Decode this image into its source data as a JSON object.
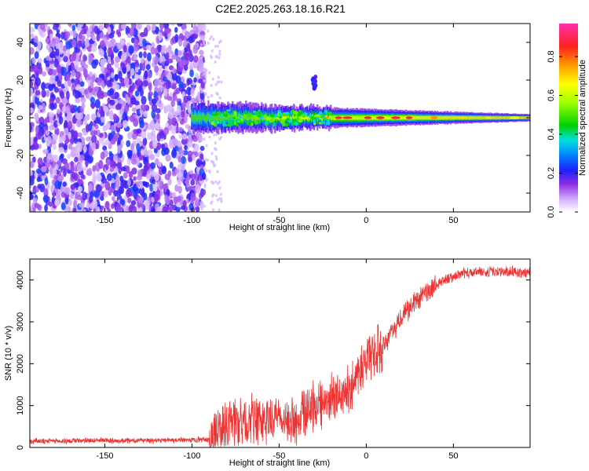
{
  "title": "C2E2.2025.263.18.16.R21",
  "chart_data": [
    {
      "type": "heatmap",
      "title": "C2E2.2025.263.18.16.R21",
      "xlabel": "Height of straight line (km)",
      "ylabel": "Frequency (Hz)",
      "xlim": [
        -193,
        94
      ],
      "ylim": [
        -50,
        50
      ],
      "xticks": [
        -150,
        -100,
        -50,
        0,
        50
      ],
      "xtick_labels": [
        "-150",
        "-100",
        "-50",
        "0",
        "50"
      ],
      "yticks": [
        -40,
        -20,
        0,
        20,
        40
      ],
      "ytick_labels": [
        "-40",
        "-20",
        "0",
        "20",
        "40"
      ],
      "description_regions": [
        {
          "x_range": [
            -193,
            -93
          ],
          "y_range": [
            -50,
            50
          ],
          "amplitude_range": [
            0.05,
            0.25
          ],
          "pattern": "scattered noise"
        },
        {
          "x_range": [
            -100,
            94
          ],
          "y_center": 0,
          "half_width_hz": [
            6,
            1.5
          ],
          "amplitude_range": [
            0.2,
            0.9
          ],
          "pattern": "narrow band tapering along x"
        },
        {
          "x_range": [
            -31,
            -29
          ],
          "y_range": [
            15,
            22
          ],
          "amplitude_range": [
            0.15,
            0.25
          ],
          "pattern": "isolated blob"
        }
      ],
      "colorbar": {
        "label": "Normalized spectral amplitude",
        "range": [
          0.0,
          0.97
        ],
        "ticks": [
          0.0,
          0.2,
          0.4,
          0.6,
          0.8
        ],
        "tick_labels": [
          "0.0",
          "0.2",
          "0.4",
          "0.6",
          "0.8"
        ]
      }
    },
    {
      "type": "line",
      "xlabel": "Height of straight line (km)",
      "ylabel": "SNR (10 * v/v)",
      "xlim": [
        -193,
        94
      ],
      "ylim": [
        0,
        4500
      ],
      "xticks": [
        -150,
        -100,
        -50,
        0,
        50
      ],
      "xtick_labels": [
        "-150",
        "-100",
        "-50",
        "0",
        "50"
      ],
      "yticks": [
        0,
        1000,
        2000,
        3000,
        4000
      ],
      "ytick_labels": [
        "0",
        "1000",
        "2000",
        "3000",
        "4000"
      ],
      "series": [
        {
          "name": "SNR",
          "color": "#ee3333",
          "trend_x": [
            -193,
            -150,
            -100,
            -90,
            -85,
            -80,
            -70,
            -60,
            -50,
            -40,
            -30,
            -20,
            -10,
            0,
            10,
            20,
            30,
            40,
            50,
            60,
            70,
            80,
            94
          ],
          "trend_y": [
            150,
            160,
            170,
            200,
            400,
            550,
            600,
            650,
            700,
            650,
            1000,
            1150,
            1400,
            2100,
            2400,
            3100,
            3600,
            3900,
            4100,
            4180,
            4200,
            4200,
            4150
          ]
        }
      ]
    }
  ]
}
